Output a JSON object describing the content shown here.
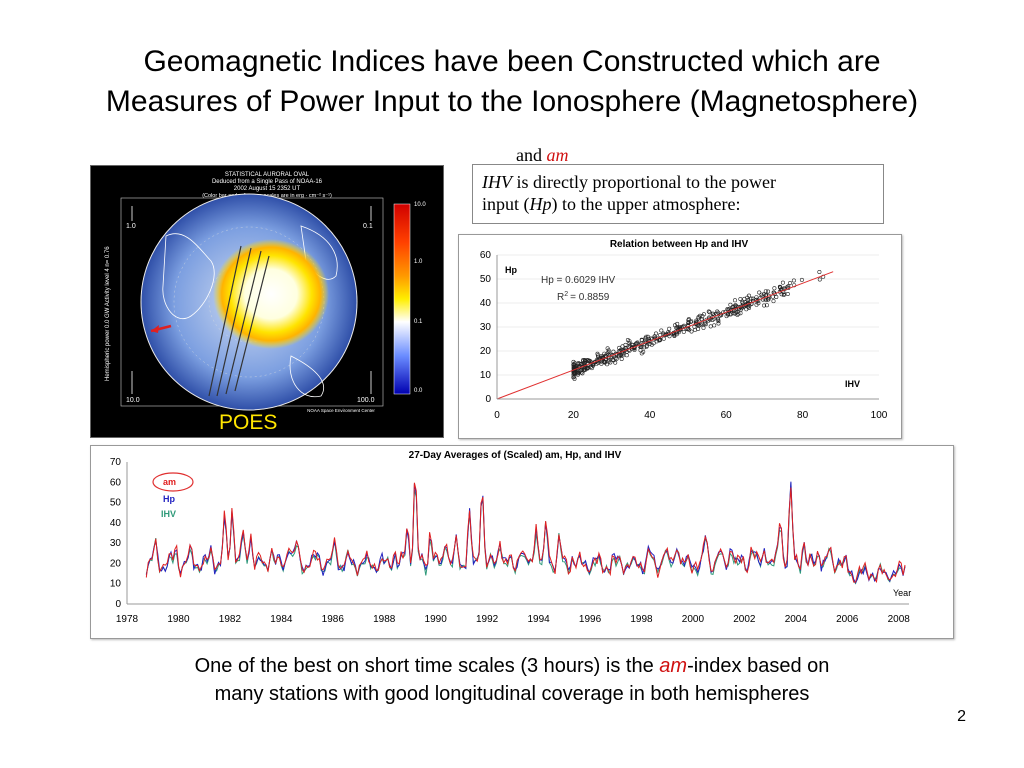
{
  "slide": {
    "title_line1": "Geomagnetic Indices have been Constructed which are",
    "title_line2": "Measures of Power Input to the Ionosphere (Magnetosphere)",
    "and_text": "and",
    "am_text": "am",
    "ihv_line1_ital": "IHV",
    "ihv_line1_rest": " is directly proportional to the power",
    "ihv_line2_a": "input (",
    "ihv_line2_ital": "Hp",
    "ihv_line2_b": ") to the upper atmosphere:",
    "poes_label": "POES",
    "caption_a": "One of the best on short time scales (3 hours) is the ",
    "caption_am": "am",
    "caption_b": "-index based on",
    "caption_line2": "many stations with good longitudinal coverage in both hemispheres",
    "page_number": "2"
  },
  "aurora_map": {
    "header_lines": [
      "STATISTICAL AURORAL OVAL",
      "Deduced from a Single Pass of NOAA-16",
      "2002 August 15 2352 UT",
      "(Color bar and reference scales are in erg · cm⁻² s⁻¹)"
    ],
    "side_label": "Hemispheric power 0.0 GW  Activity level 4  n= 0.76",
    "colorbar_ticks": [
      "10.0",
      "1.0",
      "0.1",
      "0.0"
    ],
    "corner_labels": [
      "1.0",
      "0.1",
      "10.0",
      "100.0"
    ],
    "footer": "NOAA Space Environment Center",
    "colors": {
      "bg": "#000000",
      "oval": "#ffe400",
      "ring": "#ffffff"
    }
  },
  "chart_data": [
    {
      "type": "scatter",
      "title": "Relation between Hp and IHV",
      "ylabel": "Hp",
      "xlabel": "IHV",
      "equation": "Hp = 0.6029 IHV",
      "r2_label": "R",
      "r2_value": "= 0.8859",
      "xlim": [
        0,
        100
      ],
      "ylim": [
        0,
        60
      ],
      "xticks": [
        "0",
        "20",
        "40",
        "60",
        "80",
        "100"
      ],
      "yticks": [
        "0",
        "10",
        "20",
        "30",
        "40",
        "50",
        "60"
      ],
      "fit": {
        "slope": 0.6029,
        "intercept": 0,
        "x_range": [
          0,
          88
        ]
      },
      "cloud": {
        "x_min": 20,
        "x_max": 88,
        "n": 450,
        "noise": 2.8
      },
      "colors": {
        "points": "#222222",
        "fit": "#e03030"
      }
    },
    {
      "type": "line",
      "title": "27-Day Averages of (Scaled) am, Hp, and IHV",
      "xlabel": "Year",
      "ylim": [
        0,
        70
      ],
      "xlim": [
        1978,
        2008.4
      ],
      "yticks": [
        "0",
        "10",
        "20",
        "30",
        "40",
        "50",
        "60",
        "70"
      ],
      "xticks": [
        "1978",
        "1980",
        "1982",
        "1984",
        "1986",
        "1988",
        "1990",
        "1992",
        "1994",
        "1996",
        "1998",
        "2000",
        "2002",
        "2004",
        "2006",
        "2008"
      ],
      "series": [
        {
          "name": "am",
          "color": "#e02020"
        },
        {
          "name": "Hp",
          "color": "#2020c0"
        },
        {
          "name": "IHV",
          "color": "#2f9a7a"
        }
      ],
      "peaks": [
        [
          1979.1,
          33
        ],
        [
          1979.9,
          30
        ],
        [
          1980.5,
          29
        ],
        [
          1981.3,
          31
        ],
        [
          1981.8,
          45
        ],
        [
          1982.1,
          52
        ],
        [
          1982.5,
          38
        ],
        [
          1982.8,
          40
        ],
        [
          1983.6,
          32
        ],
        [
          1984.3,
          35
        ],
        [
          1984.6,
          34
        ],
        [
          1985.4,
          30
        ],
        [
          1986.1,
          35
        ],
        [
          1986.6,
          26
        ],
        [
          1987.4,
          23
        ],
        [
          1988.4,
          30
        ],
        [
          1988.9,
          43
        ],
        [
          1989.2,
          67
        ],
        [
          1989.8,
          40
        ],
        [
          1990.4,
          38
        ],
        [
          1990.8,
          34
        ],
        [
          1991.3,
          49
        ],
        [
          1991.8,
          64
        ],
        [
          1992.5,
          38
        ],
        [
          1993.3,
          33
        ],
        [
          1993.9,
          44
        ],
        [
          1994.3,
          42
        ],
        [
          1994.8,
          36
        ],
        [
          1995.3,
          28
        ],
        [
          1996.2,
          25
        ],
        [
          1997.2,
          25
        ],
        [
          1998.3,
          30
        ],
        [
          1998.9,
          30
        ],
        [
          1999.4,
          36
        ],
        [
          2000.5,
          37
        ],
        [
          2001.0,
          30
        ],
        [
          2001.5,
          35
        ],
        [
          2002.3,
          34
        ],
        [
          2002.8,
          33
        ],
        [
          2003.4,
          48
        ],
        [
          2003.8,
          61
        ],
        [
          2004.3,
          36
        ],
        [
          2004.9,
          31
        ],
        [
          2005.3,
          30
        ],
        [
          2005.7,
          27
        ],
        [
          2006.5,
          20
        ],
        [
          2007.3,
          16
        ],
        [
          2007.9,
          15
        ],
        [
          2008.3,
          26
        ]
      ]
    }
  ]
}
